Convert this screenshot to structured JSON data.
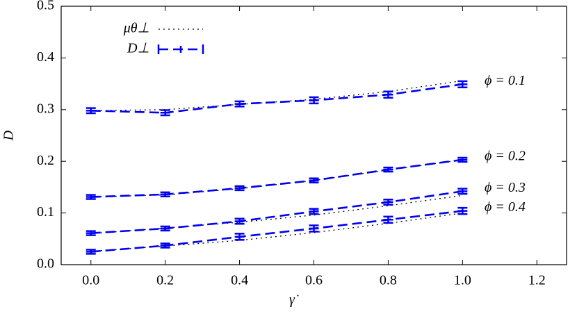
{
  "chart_data": {
    "type": "line",
    "xlabel": "γ̇",
    "ylabel": "D",
    "x": [
      0,
      0.2,
      0.4,
      0.6,
      0.8,
      1.0
    ],
    "series": [
      {
        "name": "μθ⊥",
        "color": "#000000",
        "style": "dotted",
        "values": [
          0.298,
          0.3,
          0.31,
          0.32,
          0.335,
          0.356
        ]
      },
      {
        "color": "#000000",
        "style": "dotted",
        "values": [
          0.131,
          0.135,
          0.147,
          0.163,
          0.183,
          0.203
        ]
      },
      {
        "color": "#000000",
        "style": "dotted",
        "values": [
          0.06,
          0.071,
          0.082,
          0.096,
          0.114,
          0.134
        ]
      },
      {
        "color": "#000000",
        "style": "dotted",
        "values": [
          0.026,
          0.036,
          0.047,
          0.062,
          0.08,
          0.1
        ]
      },
      {
        "name": "D⊥",
        "color": "#0000ee",
        "style": "dashed",
        "values": [
          0.298,
          0.294,
          0.311,
          0.318,
          0.329,
          0.349
        ],
        "errors": [
          0.005,
          0.005,
          0.005,
          0.006,
          0.006,
          0.006
        ]
      },
      {
        "color": "#0000ee",
        "style": "dashed",
        "values": [
          0.131,
          0.136,
          0.148,
          0.163,
          0.184,
          0.203
        ],
        "errors": [
          0.004,
          0.004,
          0.004,
          0.004,
          0.004,
          0.004
        ]
      },
      {
        "color": "#0000ee",
        "style": "dashed",
        "values": [
          0.061,
          0.07,
          0.084,
          0.103,
          0.121,
          0.142
        ],
        "errors": [
          0.004,
          0.004,
          0.005,
          0.005,
          0.005,
          0.005
        ]
      },
      {
        "color": "#0000ee",
        "style": "dashed",
        "values": [
          0.025,
          0.037,
          0.054,
          0.07,
          0.087,
          0.104
        ],
        "errors": [
          0.004,
          0.004,
          0.006,
          0.006,
          0.006,
          0.006
        ]
      }
    ],
    "annotations": [
      "ϕ = 0.1",
      "ϕ = 0.2",
      "ϕ = 0.3",
      "ϕ = 0.4"
    ],
    "legend": "upper left",
    "xlim": [
      -0.08,
      1.28
    ],
    "xticks": [
      {
        "value": 0,
        "label": "0.0"
      },
      0.2,
      0.4,
      0.6,
      0.8,
      {
        "value": 1,
        "label": "1.0"
      },
      1.2
    ],
    "ylim": [
      0,
      0.5
    ],
    "yticks": [
      {
        "value": 0,
        "label": "0.0"
      },
      0.1,
      0.2,
      0.3,
      0.4,
      0.5
    ]
  }
}
